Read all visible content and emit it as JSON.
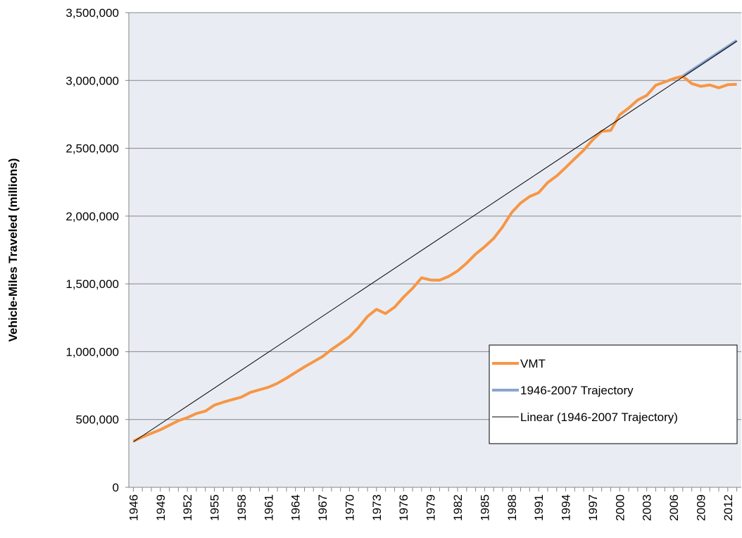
{
  "chart_data": {
    "type": "line",
    "y_label": "Vehicle-Miles Traveled (millions)",
    "x": [
      1946,
      1947,
      1948,
      1949,
      1950,
      1951,
      1952,
      1953,
      1954,
      1955,
      1956,
      1957,
      1958,
      1959,
      1960,
      1961,
      1962,
      1963,
      1964,
      1965,
      1966,
      1967,
      1968,
      1969,
      1970,
      1971,
      1972,
      1973,
      1974,
      1975,
      1976,
      1977,
      1978,
      1979,
      1980,
      1981,
      1982,
      1983,
      1984,
      1985,
      1986,
      1987,
      1988,
      1989,
      1990,
      1991,
      1992,
      1993,
      1994,
      1995,
      1996,
      1997,
      1998,
      1999,
      2000,
      2001,
      2002,
      2003,
      2004,
      2005,
      2006,
      2007,
      2008,
      2009,
      2010,
      2011,
      2012,
      2013
    ],
    "xlim": [
      1945.5,
      2013.5
    ],
    "xticks": [
      1946,
      1949,
      1952,
      1955,
      1958,
      1961,
      1964,
      1967,
      1970,
      1973,
      1976,
      1979,
      1982,
      1985,
      1988,
      1991,
      1994,
      1997,
      2000,
      2003,
      2006,
      2009,
      2012
    ],
    "ylim": [
      0,
      3500000
    ],
    "yticks": [
      {
        "value": 0,
        "label": "0"
      },
      {
        "value": 500000,
        "label": "500,000"
      },
      {
        "value": 1000000,
        "label": "1,000,000"
      },
      {
        "value": 1500000,
        "label": "1,500,000"
      },
      {
        "value": 2000000,
        "label": "2,000,000"
      },
      {
        "value": 2500000,
        "label": "2,500,000"
      },
      {
        "value": 3000000,
        "label": "3,000,000"
      },
      {
        "value": 3500000,
        "label": "3,500,000"
      }
    ],
    "grid": true,
    "legend": "lower right",
    "series": [
      {
        "name": "1946-2007 Trajectory",
        "color": "#8da5cc",
        "width": 4,
        "values": [
          null,
          null,
          null,
          null,
          null,
          null,
          null,
          null,
          null,
          null,
          null,
          null,
          null,
          null,
          null,
          null,
          null,
          null,
          null,
          null,
          null,
          null,
          null,
          null,
          null,
          null,
          null,
          null,
          null,
          null,
          null,
          null,
          null,
          null,
          null,
          null,
          null,
          null,
          null,
          null,
          null,
          null,
          null,
          null,
          null,
          null,
          null,
          null,
          null,
          null,
          null,
          null,
          null,
          null,
          null,
          null,
          null,
          null,
          null,
          null,
          null,
          3031000,
          3075000,
          3119000,
          3163000,
          3207000,
          3251000,
          3295000
        ]
      },
      {
        "name": "VMT",
        "color": "#f79646",
        "width": 4,
        "values": [
          340000,
          371000,
          398000,
          424000,
          458000,
          491000,
          514000,
          544000,
          562000,
          606000,
          628000,
          647000,
          665000,
          700000,
          719000,
          738000,
          767000,
          805000,
          847000,
          888000,
          926000,
          964000,
          1016000,
          1062000,
          1110000,
          1179000,
          1260000,
          1313000,
          1281000,
          1328000,
          1402000,
          1467000,
          1545000,
          1529000,
          1527000,
          1555000,
          1595000,
          1653000,
          1720000,
          1774000,
          1835000,
          1921000,
          2026000,
          2096000,
          2144000,
          2172000,
          2247000,
          2296000,
          2358000,
          2423000,
          2486000,
          2562000,
          2625000,
          2632000,
          2747000,
          2797000,
          2856000,
          2890000,
          2965000,
          2989000,
          3014000,
          3031000,
          2977000,
          2957000,
          2967000,
          2946000,
          2969000,
          2972000
        ]
      },
      {
        "name": "Linear (1946-2007 Trajectory)",
        "color": "#000000",
        "width": 1,
        "x": [
          1946,
          2013
        ],
        "values": [
          335000,
          3290000
        ]
      }
    ]
  }
}
